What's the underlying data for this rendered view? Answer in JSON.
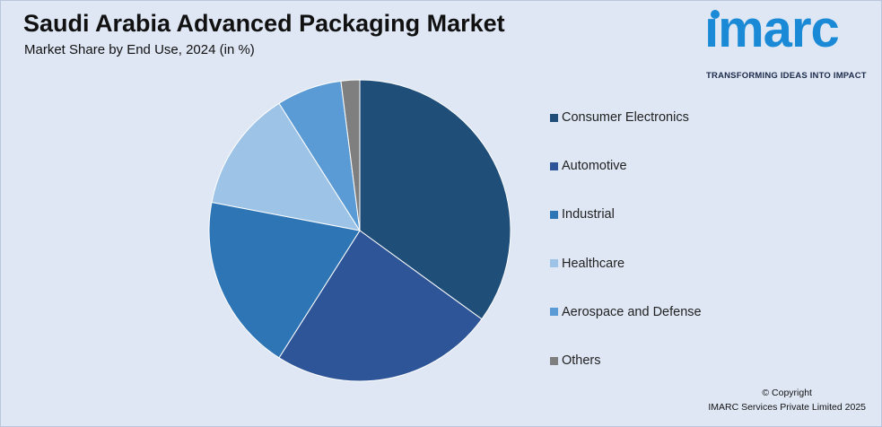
{
  "header": {
    "title": "Saudi Arabia Advanced Packaging Market",
    "subtitle": "Market Share by End Use, 2024 (in %)"
  },
  "logo": {
    "word": "ımarc",
    "tagline": "TRANSFORMING IDEAS INTO IMPACT",
    "color": "#1a8ad6"
  },
  "chart_data": {
    "type": "pie",
    "title": "Saudi Arabia Advanced Packaging Market",
    "subtitle": "Market Share by End Use, 2024 (in %)",
    "unit": "%",
    "start_angle_deg": 0,
    "direction": "clockwise",
    "legend_position": "right",
    "slices": [
      {
        "label": "Consumer Electronics",
        "value": 35,
        "color": "#1f4e79"
      },
      {
        "label": "Automotive",
        "value": 24,
        "color": "#2e5597"
      },
      {
        "label": "Industrial",
        "value": 19,
        "color": "#2e75b6"
      },
      {
        "label": "Healthcare",
        "value": 13,
        "color": "#9dc3e6"
      },
      {
        "label": "Aerospace and Defense",
        "value": 7,
        "color": "#5b9bd5"
      },
      {
        "label": "Others",
        "value": 2,
        "color": "#7f7f7f"
      }
    ]
  },
  "footer": {
    "copyright_line1": "© Copyright",
    "copyright_line2": "IMARC Services Private Limited 2025"
  }
}
